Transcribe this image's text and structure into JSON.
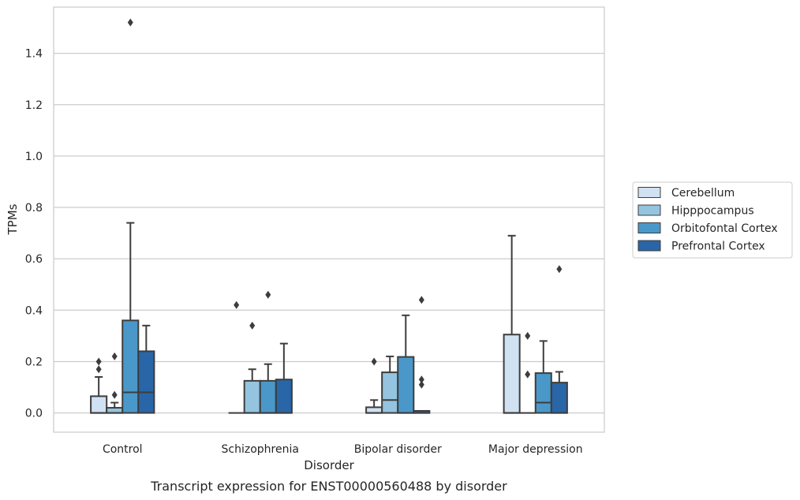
{
  "caption": "Transcript expression for ENST00000560488 by disorder",
  "chart_data": {
    "type": "box",
    "title": "",
    "xlabel": "Disorder",
    "ylabel": "TPMs",
    "ylim": [
      -0.075,
      1.58
    ],
    "yticks": [
      0.0,
      0.2,
      0.4,
      0.6,
      0.8,
      1.0,
      1.2,
      1.4
    ],
    "ytick_labels": [
      "0.0",
      "0.2",
      "0.4",
      "0.6",
      "0.8",
      "1.0",
      "1.2",
      "1.4"
    ],
    "grid": "horizontal",
    "legend_position": "right",
    "categories": [
      "Control",
      "Schizophrenia",
      "Bipolar disorder",
      "Major depression"
    ],
    "series": [
      {
        "name": "Cerebellum",
        "color": "#d0e1f2",
        "boxes": [
          {
            "q1": 0.0,
            "median": 0.0,
            "q3": 0.065,
            "whisker_low": 0.0,
            "whisker_high": 0.14,
            "outliers": [
              0.17,
              0.2
            ]
          },
          {
            "q1": 0.0,
            "median": 0.0,
            "q3": 0.0,
            "whisker_low": 0.0,
            "whisker_high": 0.0,
            "outliers": [
              0.42
            ]
          },
          {
            "q1": 0.0,
            "median": 0.0,
            "q3": 0.022,
            "whisker_low": 0.0,
            "whisker_high": 0.05,
            "outliers": [
              0.2
            ]
          },
          {
            "q1": 0.0,
            "median": 0.0,
            "q3": 0.305,
            "whisker_low": 0.0,
            "whisker_high": 0.69,
            "outliers": []
          }
        ]
      },
      {
        "name": "Hipppocampus",
        "color": "#94c4df",
        "boxes": [
          {
            "q1": 0.0,
            "median": 0.0,
            "q3": 0.02,
            "whisker_low": 0.0,
            "whisker_high": 0.04,
            "outliers": [
              0.07,
              0.22
            ]
          },
          {
            "q1": 0.0,
            "median": 0.0,
            "q3": 0.125,
            "whisker_low": 0.0,
            "whisker_high": 0.17,
            "outliers": [
              0.34
            ]
          },
          {
            "q1": 0.0,
            "median": 0.05,
            "q3": 0.158,
            "whisker_low": 0.0,
            "whisker_high": 0.22,
            "outliers": []
          },
          {
            "q1": 0.0,
            "median": 0.0,
            "q3": 0.0,
            "whisker_low": 0.0,
            "whisker_high": 0.0,
            "outliers": [
              0.15,
              0.3
            ]
          }
        ]
      },
      {
        "name": "Orbitofontal Cortex",
        "color": "#4a98c9",
        "boxes": [
          {
            "q1": 0.0,
            "median": 0.08,
            "q3": 0.36,
            "whisker_low": 0.0,
            "whisker_high": 0.74,
            "outliers": [
              1.52
            ]
          },
          {
            "q1": 0.0,
            "median": 0.0,
            "q3": 0.125,
            "whisker_low": 0.0,
            "whisker_high": 0.19,
            "outliers": [
              0.46
            ]
          },
          {
            "q1": 0.0,
            "median": 0.0,
            "q3": 0.218,
            "whisker_low": 0.0,
            "whisker_high": 0.38,
            "outliers": []
          },
          {
            "q1": 0.0,
            "median": 0.04,
            "q3": 0.155,
            "whisker_low": 0.0,
            "whisker_high": 0.28,
            "outliers": []
          }
        ]
      },
      {
        "name": "Prefrontal Cortex",
        "color": "#2966a8",
        "boxes": [
          {
            "q1": 0.0,
            "median": 0.08,
            "q3": 0.24,
            "whisker_low": 0.0,
            "whisker_high": 0.34,
            "outliers": []
          },
          {
            "q1": 0.0,
            "median": 0.0,
            "q3": 0.13,
            "whisker_low": 0.0,
            "whisker_high": 0.27,
            "outliers": []
          },
          {
            "q1": 0.0,
            "median": 0.0,
            "q3": 0.008,
            "whisker_low": 0.0,
            "whisker_high": 0.008,
            "outliers": [
              0.11,
              0.13,
              0.44
            ]
          },
          {
            "q1": 0.0,
            "median": 0.0,
            "q3": 0.118,
            "whisker_low": 0.0,
            "whisker_high": 0.16,
            "outliers": [
              0.56
            ]
          }
        ]
      }
    ]
  }
}
